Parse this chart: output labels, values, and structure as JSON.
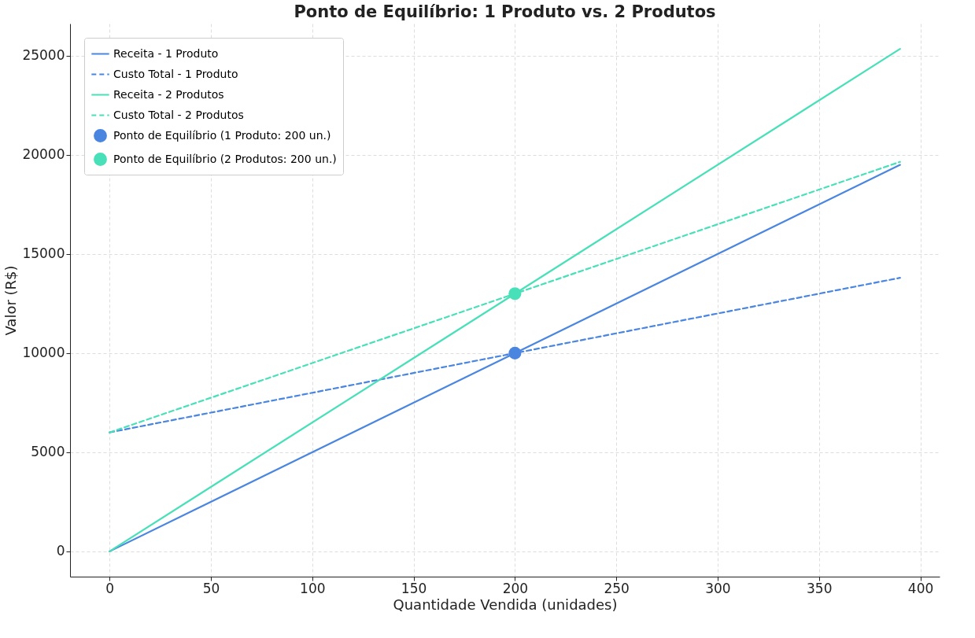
{
  "chart_data": {
    "type": "line",
    "title": "Ponto de Equilíbrio: 1 Produto vs. 2 Produtos",
    "xlabel": "Quantidade Vendida (unidades)",
    "ylabel": "Valor (R$)",
    "xlim": [
      -19.5,
      409.5
    ],
    "ylim": [
      -1275,
      26625
    ],
    "xticks": [
      0,
      50,
      100,
      150,
      200,
      250,
      300,
      350,
      400
    ],
    "yticks": [
      0,
      5000,
      10000,
      15000,
      20000,
      25000
    ],
    "grid": true,
    "legend": "top left",
    "series": [
      {
        "name": "Receita - 1 Produto",
        "type": "line",
        "line_style": "solid",
        "color": "#4a86e0",
        "x": [
          0,
          390
        ],
        "values": [
          0,
          19500
        ]
      },
      {
        "name": "Custo Total - 1 Produto",
        "type": "line",
        "line_style": "dashed",
        "color": "#4a86e0",
        "x": [
          0,
          390
        ],
        "values": [
          6000,
          13800
        ]
      },
      {
        "name": "Receita - 2 Produtos",
        "type": "line",
        "line_style": "solid",
        "color": "#48e0b8",
        "x": [
          0,
          390
        ],
        "values": [
          0,
          25350
        ]
      },
      {
        "name": "Custo Total - 2 Produtos",
        "type": "line",
        "line_style": "dashed",
        "color": "#48e0b8",
        "x": [
          0,
          390
        ],
        "values": [
          6000,
          19650
        ]
      },
      {
        "name": "Ponto de Equilíbrio (1 Produto: 200 un.)",
        "type": "scatter",
        "marker": "circle",
        "color": "#4a86e0",
        "x": [
          200
        ],
        "values": [
          10000
        ]
      },
      {
        "name": "Ponto de Equilíbrio (2 Produtos: 200 un.)",
        "type": "scatter",
        "marker": "circle",
        "color": "#48e0b8",
        "x": [
          200
        ],
        "values": [
          13000
        ]
      }
    ]
  }
}
